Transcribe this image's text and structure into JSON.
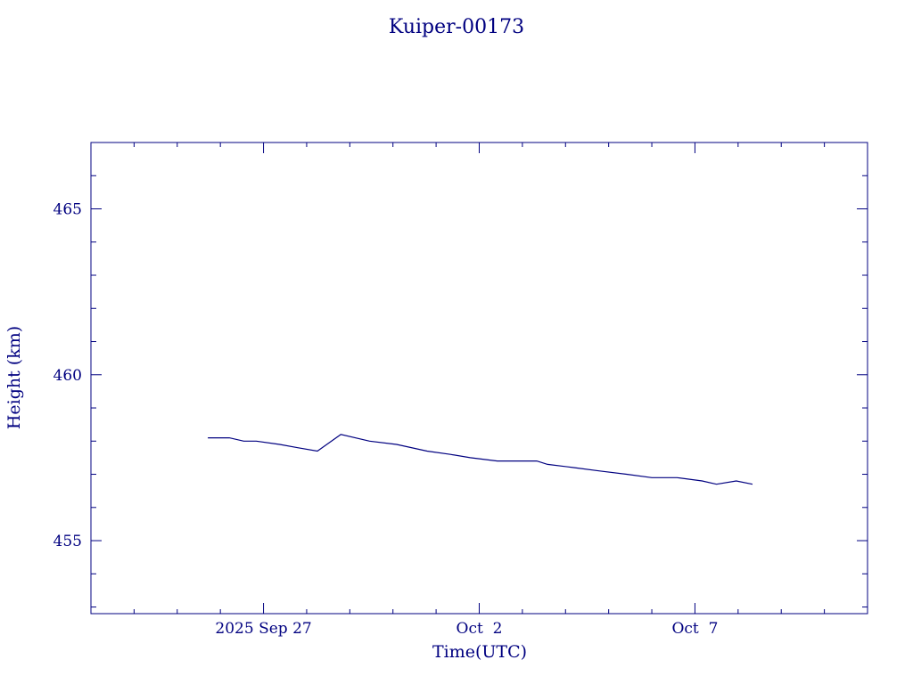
{
  "chart_data": {
    "type": "line",
    "title": "Kuiper-00173",
    "xlabel": "Time(UTC)",
    "ylabel": "Height (km)",
    "x_unit": "days",
    "xlim": [
      "2025-09-23",
      "2025-10-11"
    ],
    "ylim": [
      452.8,
      467
    ],
    "y_ticks": [
      455,
      460,
      465
    ],
    "x_ticks": [
      {
        "date": "2025-09-27",
        "label": "2025 Sep 27"
      },
      {
        "date": "2025-10-02",
        "label": "Oct  2"
      },
      {
        "date": "2025-10-07",
        "label": "Oct  7"
      }
    ],
    "grid": false,
    "color": "#000080",
    "series": [
      {
        "x": [
          "2025-09-25T17:00",
          "2025-09-26T05:00",
          "2025-09-26T13:00",
          "2025-09-26T20:00",
          "2025-09-27T09:00",
          "2025-09-27T19:00",
          "2025-09-28T06:00",
          "2025-09-28T19:00",
          "2025-09-29T11:00",
          "2025-09-30T02:00",
          "2025-09-30T19:00",
          "2025-10-01T08:00",
          "2025-10-01T19:00",
          "2025-10-02T10:00",
          "2025-10-02T22:00",
          "2025-10-03T08:00",
          "2025-10-03T14:00",
          "2025-10-04T05:00",
          "2025-10-04T19:00",
          "2025-10-05T10:00",
          "2025-10-06T00:00",
          "2025-10-06T14:00",
          "2025-10-07T04:00",
          "2025-10-07T12:00",
          "2025-10-07T23:00",
          "2025-10-08T08:00"
        ],
        "values": [
          458.1,
          458.1,
          458.0,
          458.0,
          457.9,
          457.8,
          457.7,
          458.2,
          458.0,
          457.9,
          457.7,
          457.6,
          457.5,
          457.4,
          457.4,
          457.4,
          457.3,
          457.2,
          457.1,
          457.0,
          456.9,
          456.9,
          456.8,
          456.7,
          456.8,
          456.7
        ]
      }
    ]
  }
}
